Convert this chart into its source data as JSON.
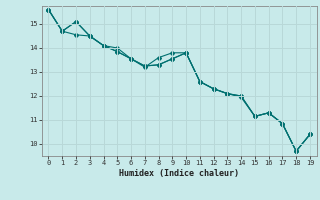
{
  "xlabel": "Humidex (Indice chaleur)",
  "background_color": "#c8eaea",
  "grid_color": "#b8d8d8",
  "line_color": "#007070",
  "xlim": [
    -0.5,
    19.5
  ],
  "ylim": [
    9.5,
    15.75
  ],
  "xticks": [
    0,
    1,
    2,
    3,
    4,
    5,
    6,
    7,
    8,
    9,
    10,
    11,
    12,
    13,
    14,
    15,
    16,
    17,
    18,
    19
  ],
  "yticks": [
    10,
    11,
    12,
    13,
    14,
    15
  ],
  "series1": [
    15.6,
    14.7,
    15.1,
    14.5,
    14.1,
    13.85,
    13.55,
    13.25,
    13.3,
    13.55,
    13.8,
    12.6,
    12.3,
    12.1,
    12.0,
    11.15,
    11.3,
    10.85,
    9.7,
    10.4
  ],
  "series2": [
    15.6,
    14.7,
    14.55,
    14.5,
    14.1,
    13.85,
    13.55,
    13.25,
    13.3,
    13.55,
    13.8,
    12.6,
    12.3,
    12.1,
    12.0,
    11.15,
    11.3,
    10.85,
    9.7,
    10.4
  ],
  "series3": [
    15.6,
    14.7,
    15.1,
    14.5,
    14.1,
    14.0,
    13.55,
    13.2,
    13.6,
    13.8,
    13.8,
    12.6,
    12.3,
    12.1,
    11.95,
    11.15,
    11.3,
    10.85,
    9.7,
    10.4
  ]
}
